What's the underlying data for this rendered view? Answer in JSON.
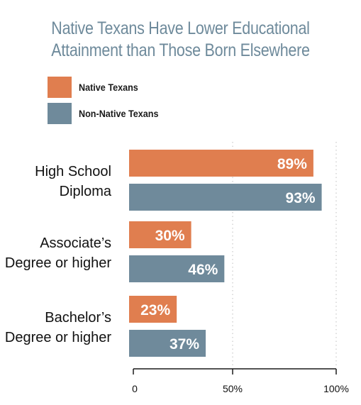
{
  "chart_data": {
    "type": "bar",
    "orientation": "horizontal",
    "title_lines": [
      "Native Texans Have Lower Educational",
      "Attainment than Those Born Elsewhere"
    ],
    "categories": [
      [
        "High School",
        "Diploma"
      ],
      [
        "Associate’s",
        "Degree or higher"
      ],
      [
        "Bachelor’s",
        "Degree or higher"
      ]
    ],
    "series": [
      {
        "name": "Native Texans",
        "color": "#e07e4f",
        "values": [
          89,
          30,
          23
        ],
        "labels": [
          "89%",
          "30%",
          "23%"
        ]
      },
      {
        "name": "Non-Native Texans",
        "color": "#6f8a9b",
        "values": [
          93,
          46,
          37
        ],
        "labels": [
          "93%",
          "46%",
          "37%"
        ]
      }
    ],
    "x_ticks": [
      {
        "value": 0,
        "label": "0"
      },
      {
        "value": 50,
        "label": "50%"
      },
      {
        "value": 100,
        "label": "100%"
      }
    ],
    "xlim": [
      0,
      100
    ],
    "legend_position": "top-left",
    "grid": "vertical-dotted"
  }
}
